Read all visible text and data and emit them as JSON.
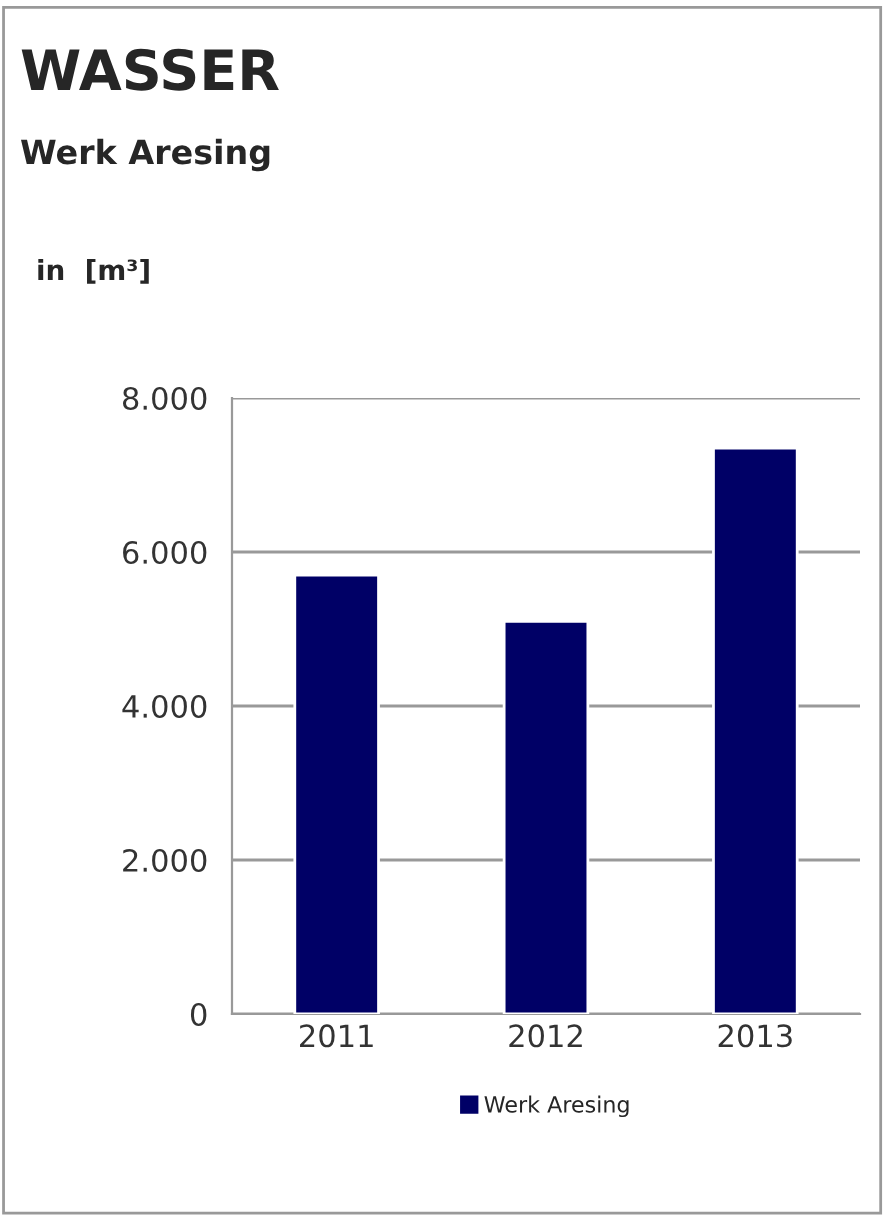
{
  "chart_data": {
    "type": "bar",
    "title": "WASSER",
    "subtitle": "Werk Aresing",
    "ylabel": "in  [m³]",
    "categories": [
      "2011",
      "2012",
      "2013"
    ],
    "series": [
      {
        "name": "Werk Aresing",
        "color": "#000066",
        "values": [
          5700,
          5100,
          7350
        ]
      }
    ],
    "ylim": [
      0,
      8000
    ],
    "yticks": [
      {
        "value": 0,
        "label": "0"
      },
      {
        "value": 2000,
        "label": "2.000"
      },
      {
        "value": 4000,
        "label": "4.000"
      },
      {
        "value": 6000,
        "label": "6.000"
      },
      {
        "value": 8000,
        "label": "8.000"
      }
    ],
    "grid": "y",
    "legend": "bottom"
  }
}
